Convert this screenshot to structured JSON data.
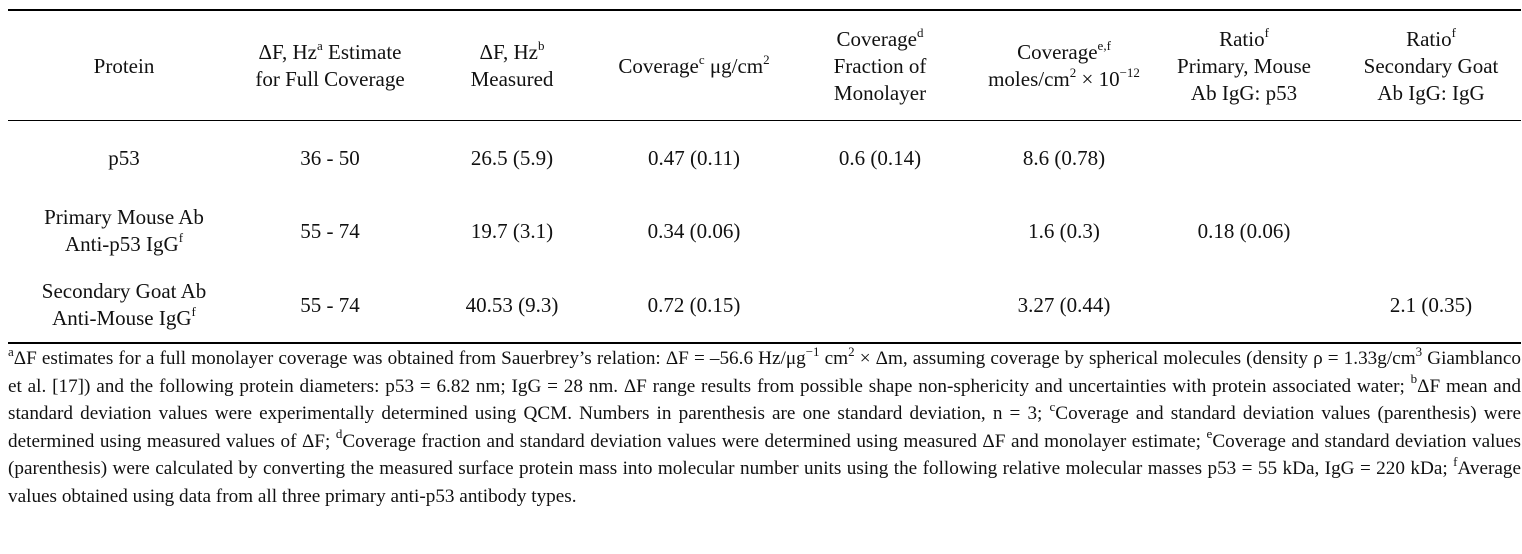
{
  "table": {
    "headers": [
      {
        "lines": [
          {
            "pre": "Protein"
          }
        ]
      },
      {
        "lines": [
          {
            "pre": "ΔF, Hz",
            "sup": "a",
            "post": " Estimate"
          },
          {
            "pre": "for Full Coverage"
          }
        ]
      },
      {
        "lines": [
          {
            "pre": "ΔF, Hz",
            "sup": "b"
          },
          {
            "pre": "Measured"
          }
        ]
      },
      {
        "lines": [
          {
            "pre": "Coverage",
            "sup": "c",
            "post": " μg/cm",
            "sup2": "2"
          }
        ]
      },
      {
        "lines": [
          {
            "pre": "Coverage",
            "sup": "d"
          },
          {
            "pre": "Fraction of"
          },
          {
            "pre": "Monolayer"
          }
        ]
      },
      {
        "lines": [
          {
            "pre": "Coverage",
            "sup": "e,f"
          },
          {
            "pre": "moles/cm",
            "sup": "2",
            "post": " × 10",
            "sup2": "−12"
          }
        ]
      },
      {
        "lines": [
          {
            "pre": "Ratio",
            "sup": "f"
          },
          {
            "pre": "Primary, Mouse"
          },
          {
            "pre": "Ab IgG: p53"
          }
        ]
      },
      {
        "lines": [
          {
            "pre": "Ratio",
            "sup": "f"
          },
          {
            "pre": "Secondary Goat"
          },
          {
            "pre": "Ab IgG: IgG"
          }
        ]
      }
    ],
    "rows": [
      {
        "protein": [
          {
            "pre": "p53"
          }
        ],
        "cells": [
          "36 - 50",
          "26.5 (5.9)",
          "0.47 (0.11)",
          "0.6 (0.14)",
          "8.6 (0.78)",
          "",
          ""
        ]
      },
      {
        "protein": [
          {
            "pre": "Primary Mouse Ab"
          },
          {
            "pre": "Anti-p53 IgG",
            "sup": "f"
          }
        ],
        "cells": [
          "55 - 74",
          "19.7 (3.1)",
          "0.34 (0.06)",
          "",
          "1.6 (0.3)",
          "0.18 (0.06)",
          ""
        ]
      },
      {
        "protein": [
          {
            "pre": "Secondary Goat Ab"
          },
          {
            "pre": "Anti-Mouse IgG",
            "sup": "f"
          }
        ],
        "cells": [
          "55 - 74",
          "40.53 (9.3)",
          "0.72 (0.15)",
          "",
          "3.27 (0.44)",
          "",
          "2.1 (0.35)"
        ]
      }
    ]
  },
  "footnotes": {
    "a_sup": "a",
    "a_text": "ΔF estimates for a full monolayer coverage was obtained from Sauerbrey’s relation: ΔF = –56.6 Hz/μg",
    "a_exp1": "−1",
    "a_text2": " cm",
    "a_exp2": "2",
    "a_text3": " × Δm, assuming coverage by spherical molecules (density ρ = 1.33g/cm",
    "a_exp3": "3",
    "a_text4": " Giamblanco et al. [17]) and the following protein diameters: p53 = 6.82 nm; IgG = 28 nm. ΔF range results from possible shape non-sphericity and uncertainties with protein associated water; ",
    "b_sup": "b",
    "b_text": "ΔF mean and standard deviation values were experimentally determined using QCM. Numbers in parenthesis are one standard deviation, n = 3; ",
    "c_sup": "c",
    "c_text": "Coverage and standard deviation values (parenthesis) were determined using measured values of ΔF; ",
    "d_sup": "d",
    "d_text": "Coverage fraction and standard deviation values were determined using measured ΔF and monolayer estimate; ",
    "e_sup": "e",
    "e_text": "Coverage and standard deviation values (parenthesis) were calculated by converting the measured surface protein mass into molecular number units using the following relative molecular masses p53 = 55 kDa, IgG = 220 kDa; ",
    "f_sup": "f",
    "f_text": "Average values obtained using data from all three primary anti-p53 antibody types."
  }
}
